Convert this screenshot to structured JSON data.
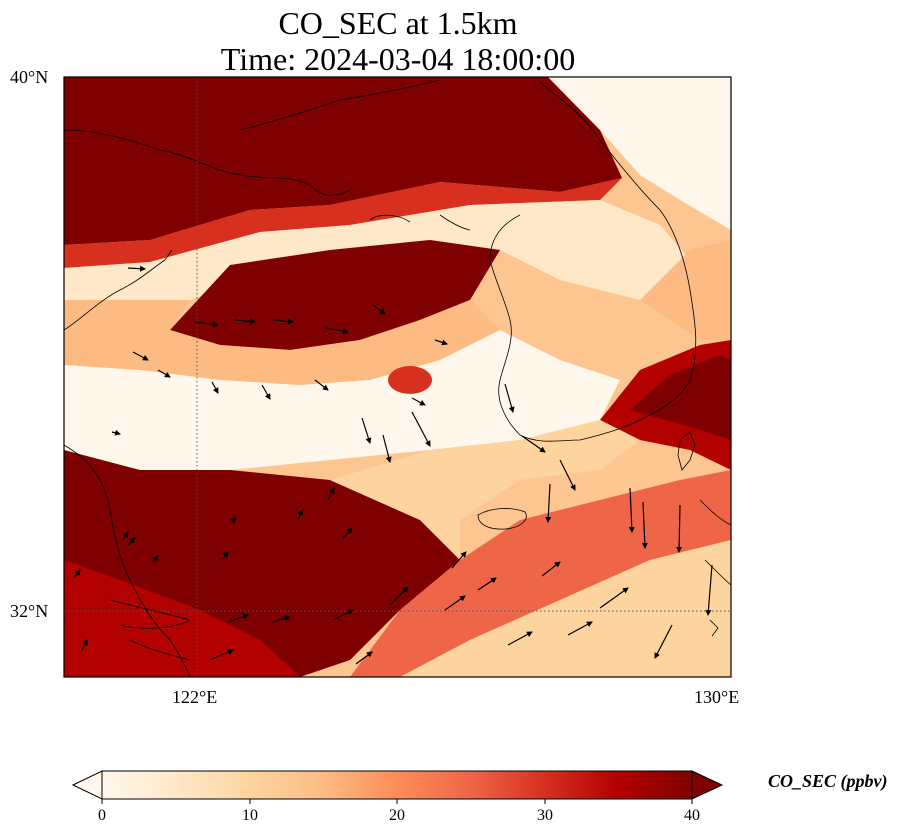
{
  "plot": {
    "title_line1": "CO_SEC at 1.5km",
    "title_line2": "Time: 2024-03-04 18:00:00",
    "lat_labels": [
      "40°N",
      "32°N"
    ],
    "lon_labels": [
      "122°E",
      "130°E"
    ],
    "extent": {
      "lon_min": 120,
      "lon_max": 130,
      "lat_min": 31,
      "lat_max": 40
    }
  },
  "colorbar": {
    "label": "CO_SEC (ppbv)",
    "ticks": [
      "0",
      "10",
      "20",
      "30",
      "40"
    ],
    "min": 0,
    "max": 40,
    "extend": "both",
    "colormap": "OrRd",
    "colors": [
      "#fff7ec",
      "#fee8c8",
      "#fdd49e",
      "#fdbb84",
      "#fc8d59",
      "#ef6548",
      "#d7301f",
      "#b30000",
      "#7f0000"
    ]
  },
  "chart_data": {
    "type": "heatmap",
    "variable": "CO_SEC",
    "units": "ppbv",
    "level": "1.5km",
    "time": "2024-03-04 18:00:00",
    "gridlines": {
      "lons": [
        122
      ],
      "lats": [
        32
      ],
      "style": "dotted"
    }
  }
}
